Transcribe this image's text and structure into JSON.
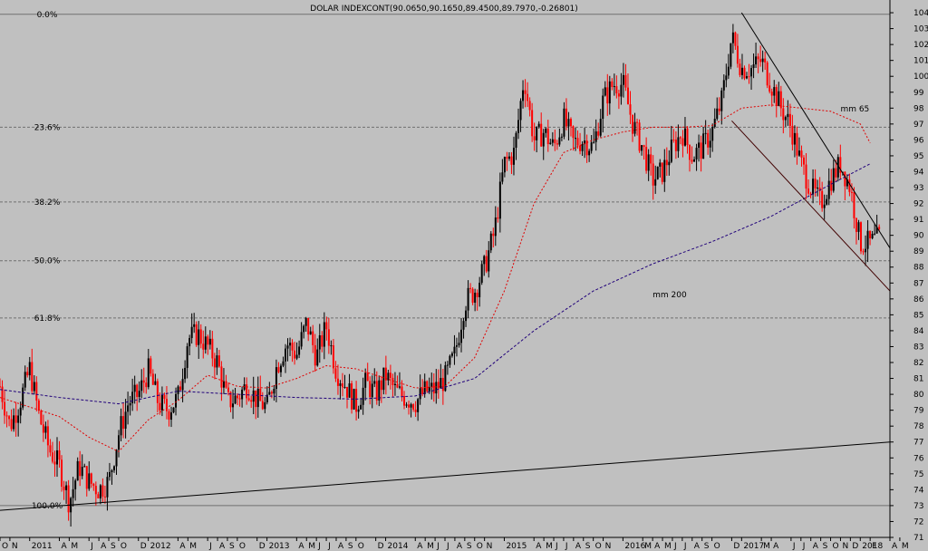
{
  "chart_data": {
    "type": "candlestick",
    "title": "DOLAR INDEXCONT(90.0650,90.1650,89.4500,89.7970,-0.26801)",
    "ylim": [
      71,
      104.8
    ],
    "y_ticks": [
      71,
      72,
      73,
      74,
      75,
      76,
      77,
      78,
      79,
      80,
      81,
      82,
      83,
      84,
      85,
      86,
      87,
      88,
      89,
      90,
      91,
      92,
      93,
      94,
      95,
      96,
      97,
      98,
      99,
      100,
      101,
      102,
      103,
      104
    ],
    "x_axis": {
      "start": "2010-10",
      "end": "2018-04",
      "labels": [
        {
          "date": "2010-10",
          "text": "O"
        },
        {
          "date": "2010-11",
          "text": "N"
        },
        {
          "date": "2011-01",
          "text": "2011"
        },
        {
          "date": "2011-04",
          "text": "A"
        },
        {
          "date": "2011-05",
          "text": "M"
        },
        {
          "date": "2011-07",
          "text": "J"
        },
        {
          "date": "2011-08",
          "text": "A"
        },
        {
          "date": "2011-09",
          "text": "S"
        },
        {
          "date": "2011-10",
          "text": "O"
        },
        {
          "date": "2011-12",
          "text": "D"
        },
        {
          "date": "2012-01",
          "text": "2012"
        },
        {
          "date": "2012-04",
          "text": "A"
        },
        {
          "date": "2012-05",
          "text": "M"
        },
        {
          "date": "2012-07",
          "text": "J"
        },
        {
          "date": "2012-08",
          "text": "A"
        },
        {
          "date": "2012-09",
          "text": "S"
        },
        {
          "date": "2012-10",
          "text": "O"
        },
        {
          "date": "2012-12",
          "text": "D"
        },
        {
          "date": "2013-01",
          "text": "2013"
        },
        {
          "date": "2013-04",
          "text": "A"
        },
        {
          "date": "2013-05",
          "text": "M"
        },
        {
          "date": "2013-06",
          "text": "J"
        },
        {
          "date": "2013-07",
          "text": "J"
        },
        {
          "date": "2013-08",
          "text": "A"
        },
        {
          "date": "2013-09",
          "text": "S"
        },
        {
          "date": "2013-10",
          "text": "O"
        },
        {
          "date": "2013-12",
          "text": "D"
        },
        {
          "date": "2014-01",
          "text": "2014"
        },
        {
          "date": "2014-04",
          "text": "A"
        },
        {
          "date": "2014-05",
          "text": "M"
        },
        {
          "date": "2014-06",
          "text": "J"
        },
        {
          "date": "2014-07",
          "text": "J"
        },
        {
          "date": "2014-08",
          "text": "A"
        },
        {
          "date": "2014-09",
          "text": "S"
        },
        {
          "date": "2014-10",
          "text": "O"
        },
        {
          "date": "2014-11",
          "text": "N"
        },
        {
          "date": "2015-01",
          "text": "2015"
        },
        {
          "date": "2015-04",
          "text": "A"
        },
        {
          "date": "2015-05",
          "text": "M"
        },
        {
          "date": "2015-06",
          "text": "J"
        },
        {
          "date": "2015-07",
          "text": "J"
        },
        {
          "date": "2015-08",
          "text": "A"
        },
        {
          "date": "2015-09",
          "text": "S"
        },
        {
          "date": "2015-10",
          "text": "O"
        },
        {
          "date": "2015-11",
          "text": "N"
        },
        {
          "date": "2016-01",
          "text": "2016"
        },
        {
          "date": "2016-03",
          "text": "M"
        },
        {
          "date": "2016-04",
          "text": "A"
        },
        {
          "date": "2016-05",
          "text": "M"
        },
        {
          "date": "2016-06",
          "text": "J"
        },
        {
          "date": "2016-07",
          "text": "J"
        },
        {
          "date": "2016-08",
          "text": "A"
        },
        {
          "date": "2016-09",
          "text": "S"
        },
        {
          "date": "2016-10",
          "text": "O"
        },
        {
          "date": "2016-12",
          "text": "D"
        },
        {
          "date": "2017-01",
          "text": "2017"
        },
        {
          "date": "2017-03",
          "text": "M"
        },
        {
          "date": "2017-04",
          "text": "A"
        },
        {
          "date": "2017-06",
          "text": "J"
        },
        {
          "date": "2017-07",
          "text": "J"
        },
        {
          "date": "2017-08",
          "text": "A"
        },
        {
          "date": "2017-09",
          "text": "S"
        },
        {
          "date": "2017-10",
          "text": "O"
        },
        {
          "date": "2017-11",
          "text": "N"
        },
        {
          "date": "2017-12",
          "text": "D"
        },
        {
          "date": "2018-01",
          "text": "2018"
        },
        {
          "date": "2018-02",
          "text": "F"
        },
        {
          "date": "2018-04",
          "text": "A"
        },
        {
          "date": "2018-05",
          "text": "M"
        }
      ]
    },
    "fibonacci": [
      {
        "label": "0.0%",
        "value": 103.9
      },
      {
        "label": "23.6%",
        "value": 96.8
      },
      {
        "label": "38.2%",
        "value": 92.1
      },
      {
        "label": "50.0%",
        "value": 88.4
      },
      {
        "label": "61.8%",
        "value": 84.8
      },
      {
        "label": "100.0%",
        "value": 73.0
      }
    ],
    "price_path": [
      [
        "2010-10",
        80.5
      ],
      [
        "2010-11",
        78.0
      ],
      [
        "2010-12",
        79.5
      ],
      [
        "2011-01",
        81.6
      ],
      [
        "2011-02",
        78.5
      ],
      [
        "2011-03",
        76.5
      ],
      [
        "2011-04",
        75.5
      ],
      [
        "2011-05",
        73.2
      ],
      [
        "2011-06",
        75.5
      ],
      [
        "2011-07",
        74.5
      ],
      [
        "2011-08",
        74.0
      ],
      [
        "2011-09",
        74.5
      ],
      [
        "2011-10",
        77.5
      ],
      [
        "2011-11",
        79.5
      ],
      [
        "2011-12",
        80.0
      ],
      [
        "2012-01",
        81.5
      ],
      [
        "2012-02",
        79.5
      ],
      [
        "2012-03",
        79.0
      ],
      [
        "2012-04",
        79.8
      ],
      [
        "2012-05",
        83.5
      ],
      [
        "2012-06",
        83.8
      ],
      [
        "2012-07",
        83.0
      ],
      [
        "2012-08",
        82.0
      ],
      [
        "2012-09",
        79.5
      ],
      [
        "2012-10",
        79.8
      ],
      [
        "2012-11",
        80.6
      ],
      [
        "2012-12",
        79.6
      ],
      [
        "2013-01",
        79.2
      ],
      [
        "2013-02",
        81.8
      ],
      [
        "2013-03",
        83.2
      ],
      [
        "2013-04",
        82.5
      ],
      [
        "2013-05",
        84.5
      ],
      [
        "2013-06",
        82.3
      ],
      [
        "2013-07",
        84.3
      ],
      [
        "2013-08",
        81.5
      ],
      [
        "2013-09",
        80.5
      ],
      [
        "2013-10",
        79.3
      ],
      [
        "2013-11",
        80.7
      ],
      [
        "2013-12",
        80.0
      ],
      [
        "2014-01",
        81.2
      ],
      [
        "2014-02",
        80.2
      ],
      [
        "2014-03",
        79.8
      ],
      [
        "2014-04",
        79.5
      ],
      [
        "2014-05",
        80.2
      ],
      [
        "2014-06",
        80.3
      ],
      [
        "2014-07",
        81.0
      ],
      [
        "2014-08",
        82.5
      ],
      [
        "2014-09",
        85.8
      ],
      [
        "2014-10",
        86.5
      ],
      [
        "2014-11",
        88.0
      ],
      [
        "2014-12",
        90.2
      ],
      [
        "2015-01",
        94.5
      ],
      [
        "2015-02",
        95.2
      ],
      [
        "2015-03",
        100.0
      ],
      [
        "2015-04",
        96.0
      ],
      [
        "2015-05",
        96.5
      ],
      [
        "2015-06",
        95.5
      ],
      [
        "2015-07",
        97.3
      ],
      [
        "2015-08",
        95.8
      ],
      [
        "2015-09",
        96.0
      ],
      [
        "2015-10",
        95.5
      ],
      [
        "2015-11",
        98.5
      ],
      [
        "2015-12",
        99.5
      ],
      [
        "2016-01",
        99.5
      ],
      [
        "2016-02",
        97.0
      ],
      [
        "2016-03",
        95.5
      ],
      [
        "2016-04",
        93.5
      ],
      [
        "2016-05",
        94.0
      ],
      [
        "2016-06",
        95.5
      ],
      [
        "2016-07",
        96.5
      ],
      [
        "2016-08",
        95.0
      ],
      [
        "2016-09",
        95.5
      ],
      [
        "2016-10",
        96.5
      ],
      [
        "2016-11",
        98.5
      ],
      [
        "2016-12",
        102.5
      ],
      [
        "2017-01",
        100.5
      ],
      [
        "2017-02",
        100.5
      ],
      [
        "2017-03",
        101.0
      ],
      [
        "2017-04",
        99.5
      ],
      [
        "2017-05",
        98.0
      ],
      [
        "2017-06",
        96.8
      ],
      [
        "2017-07",
        94.5
      ],
      [
        "2017-08",
        93.0
      ],
      [
        "2017-09",
        92.0
      ],
      [
        "2017-10",
        93.5
      ],
      [
        "2017-11",
        94.5
      ],
      [
        "2017-12",
        93.0
      ],
      [
        "2018-01",
        89.5
      ],
      [
        "2018-02",
        89.5
      ],
      [
        "2018-03",
        89.9
      ]
    ],
    "mm65": [
      [
        "2010-10",
        79.8
      ],
      [
        "2011-01",
        79.2
      ],
      [
        "2011-04",
        78.6
      ],
      [
        "2011-07",
        77.3
      ],
      [
        "2011-10",
        76.4
      ],
      [
        "2012-01",
        78.4
      ],
      [
        "2012-04",
        79.6
      ],
      [
        "2012-07",
        81.2
      ],
      [
        "2012-10",
        80.5
      ],
      [
        "2013-01",
        80.4
      ],
      [
        "2013-04",
        81.0
      ],
      [
        "2013-07",
        81.8
      ],
      [
        "2013-10",
        81.6
      ],
      [
        "2014-01",
        81.0
      ],
      [
        "2014-04",
        80.4
      ],
      [
        "2014-07",
        80.5
      ],
      [
        "2014-10",
        82.3
      ],
      [
        "2015-01",
        86.5
      ],
      [
        "2015-04",
        92.0
      ],
      [
        "2015-07",
        95.2
      ],
      [
        "2015-10",
        96.0
      ],
      [
        "2016-01",
        96.5
      ],
      [
        "2016-04",
        96.8
      ],
      [
        "2016-07",
        96.8
      ],
      [
        "2016-10",
        96.9
      ],
      [
        "2017-01",
        98.0
      ],
      [
        "2017-04",
        98.2
      ],
      [
        "2017-07",
        98.0
      ],
      [
        "2017-10",
        97.8
      ],
      [
        "2018-01",
        97.0
      ],
      [
        "2018-02",
        95.8
      ]
    ],
    "mm200": [
      [
        "2010-10",
        80.3
      ],
      [
        "2011-04",
        79.8
      ],
      [
        "2011-10",
        79.4
      ],
      [
        "2012-04",
        80.2
      ],
      [
        "2012-10",
        80.0
      ],
      [
        "2013-04",
        79.8
      ],
      [
        "2013-10",
        79.7
      ],
      [
        "2014-04",
        79.9
      ],
      [
        "2014-10",
        81.0
      ],
      [
        "2015-04",
        84.0
      ],
      [
        "2015-10",
        86.5
      ],
      [
        "2016-04",
        88.2
      ],
      [
        "2016-10",
        89.6
      ],
      [
        "2017-04",
        91.2
      ],
      [
        "2017-10",
        93.2
      ],
      [
        "2018-02",
        94.5
      ]
    ],
    "trend_lines": [
      {
        "name": "long-term-support",
        "from": [
          "2010-10",
          72.7
        ],
        "to": [
          "2018-04",
          77.0
        ],
        "color": "#000000"
      },
      {
        "name": "channel-upper",
        "from": [
          "2017-01",
          104.0
        ],
        "to": [
          "2018-04",
          89.2
        ],
        "color": "#000000"
      },
      {
        "name": "channel-lower",
        "from": [
          "2016-12",
          97.2
        ],
        "to": [
          "2018-04",
          86.5
        ],
        "color": "#400000"
      }
    ],
    "annotations": [
      {
        "text": "mm 65",
        "at": [
          "2017-11",
          97.8
        ],
        "color": "#d80000"
      },
      {
        "text": "mm 200",
        "at": [
          "2016-04",
          86.1
        ],
        "color": "#3000a0"
      }
    ],
    "colors": {
      "background": "#c0c0c0",
      "candle_up": "#000000",
      "candle_down": "#ff0000",
      "mm65": "#e00000",
      "mm200": "#20007a",
      "fib_line": "#707070"
    }
  }
}
